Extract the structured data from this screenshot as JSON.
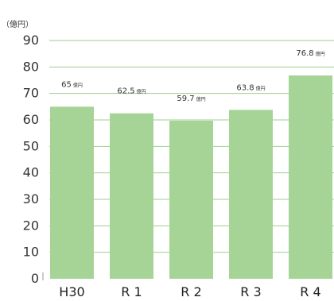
{
  "chart_data": {
    "type": "bar",
    "title": "",
    "unit_label": "（億円）",
    "xlabel": "",
    "ylabel": "",
    "categories": [
      "H30",
      "R 1",
      "R 2",
      "R 3",
      "R 4"
    ],
    "values": [
      65,
      62.5,
      59.7,
      63.8,
      76.8
    ],
    "data_labels": [
      "65",
      "62.5",
      "59.7",
      "63.8",
      "76.8"
    ],
    "data_label_unit": "億円",
    "ylim": [
      0,
      90
    ],
    "yticks": [
      0,
      10,
      20,
      30,
      40,
      50,
      60,
      70,
      80,
      90
    ],
    "grid": true,
    "bar_color": "#a6d496",
    "grid_color": "#9fcf8e",
    "axis_color": "#9a9a9a"
  }
}
